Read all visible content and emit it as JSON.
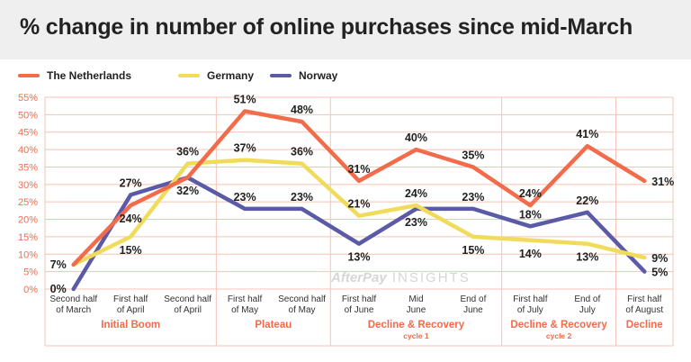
{
  "title": "% change in number of online purchases since mid-March",
  "legend": [
    {
      "name": "The Netherlands",
      "color": "#f26b4a"
    },
    {
      "name": "Germany",
      "color": "#f0dc5a"
    },
    {
      "name": "Norway",
      "color": "#5a5aa6"
    }
  ],
  "watermark": {
    "brand": "AfterPay",
    "suffix": "INSIGHTS"
  },
  "chart_data": {
    "type": "line",
    "categories": [
      [
        "Second half",
        "of March"
      ],
      [
        "First half",
        "of April"
      ],
      [
        "Second half",
        "of April"
      ],
      [
        "First half",
        "of May"
      ],
      [
        "Second half",
        "of May"
      ],
      [
        "First half",
        "of June"
      ],
      [
        "Mid",
        "June"
      ],
      [
        "End of",
        "June"
      ],
      [
        "First half",
        "of July"
      ],
      [
        "End of",
        "July"
      ],
      [
        "First half",
        "of August"
      ]
    ],
    "series": [
      {
        "name": "The Netherlands",
        "color": "#f26b4a",
        "values": [
          7,
          24,
          32,
          51,
          48,
          31,
          40,
          35,
          24,
          41,
          31
        ],
        "labels": [
          "7%",
          "24%",
          "32%",
          "51%",
          "48%",
          "31%",
          "40%",
          "35%",
          "24%",
          "41%",
          "31%"
        ],
        "label_shown": [
          true,
          true,
          true,
          true,
          true,
          true,
          true,
          true,
          true,
          true,
          true
        ],
        "label_pos": [
          "left",
          "below",
          "below",
          "above",
          "above",
          "above",
          "above",
          "above",
          "above",
          "above",
          "right"
        ]
      },
      {
        "name": "Germany",
        "color": "#f0dc5a",
        "values": [
          7,
          15,
          36,
          37,
          36,
          21,
          24,
          15,
          14,
          13,
          9
        ],
        "labels": [
          "7%",
          "15%",
          "36%",
          "37%",
          "36%",
          "21%",
          "24%",
          "15%",
          "14%",
          "13%",
          "9%"
        ],
        "label_shown": [
          false,
          true,
          true,
          true,
          true,
          true,
          true,
          true,
          true,
          true,
          true
        ],
        "label_pos": [
          "left",
          "below",
          "above",
          "above",
          "above",
          "above",
          "above",
          "below",
          "below",
          "below",
          "right"
        ]
      },
      {
        "name": "Norway",
        "color": "#5a5aa6",
        "values": [
          0,
          27,
          32,
          23,
          23,
          13,
          23,
          23,
          18,
          22,
          5
        ],
        "labels": [
          "0%",
          "27%",
          "32%",
          "23%",
          "23%",
          "13%",
          "23%",
          "23%",
          "18%",
          "22%",
          "5%"
        ],
        "label_shown": [
          true,
          true,
          false,
          true,
          true,
          true,
          true,
          true,
          true,
          true,
          true
        ],
        "label_pos": [
          "left",
          "above",
          "below",
          "above",
          "above",
          "below",
          "below",
          "above",
          "above",
          "above",
          "right"
        ]
      }
    ],
    "ylim": [
      0,
      55
    ],
    "yticks": [
      "0%",
      "5%",
      "10%",
      "15%",
      "20%",
      "25%",
      "30%",
      "35%",
      "40%",
      "45%",
      "50%",
      "55%"
    ],
    "phases": [
      {
        "label": "Initial Boom",
        "sub": "",
        "from": 0,
        "to": 2
      },
      {
        "label": "Plateau",
        "sub": "",
        "from": 3,
        "to": 4
      },
      {
        "label": "Decline & Recovery",
        "sub": "cycle 1",
        "from": 5,
        "to": 7
      },
      {
        "label": "Decline & Recovery",
        "sub": "cycle 2",
        "from": 8,
        "to": 9
      },
      {
        "label": "Decline",
        "sub": "",
        "from": 10,
        "to": 10
      }
    ],
    "grid": true,
    "legend_position": "top-left"
  }
}
